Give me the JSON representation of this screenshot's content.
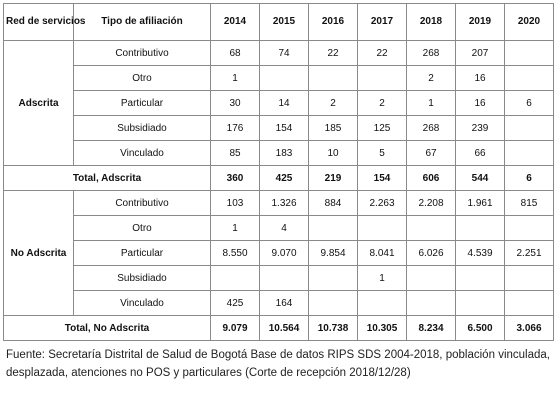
{
  "headers": {
    "red": "Red de servicios",
    "tipo": "Tipo de afiliación",
    "years": [
      "2014",
      "2015",
      "2016",
      "2017",
      "2018",
      "2019",
      "2020"
    ]
  },
  "groups": [
    {
      "label": "Adscrita",
      "rows": [
        {
          "tipo": "Contributivo",
          "values": [
            "68",
            "74",
            "22",
            "22",
            "268",
            "207",
            ""
          ]
        },
        {
          "tipo": "Otro",
          "values": [
            "1",
            "",
            "",
            "",
            "2",
            "16",
            ""
          ]
        },
        {
          "tipo": "Particular",
          "values": [
            "30",
            "14",
            "2",
            "2",
            "1",
            "16",
            "6"
          ]
        },
        {
          "tipo": "Subsidiado",
          "values": [
            "176",
            "154",
            "185",
            "125",
            "268",
            "239",
            ""
          ]
        },
        {
          "tipo": "Vinculado",
          "values": [
            "85",
            "183",
            "10",
            "5",
            "67",
            "66",
            ""
          ]
        }
      ],
      "total": {
        "label": "Total, Adscrita",
        "values": [
          "360",
          "425",
          "219",
          "154",
          "606",
          "544",
          "6"
        ]
      }
    },
    {
      "label": "No Adscrita",
      "rows": [
        {
          "tipo": "Contributivo",
          "values": [
            "103",
            "1.326",
            "884",
            "2.263",
            "2.208",
            "1.961",
            "815"
          ]
        },
        {
          "tipo": "Otro",
          "values": [
            "1",
            "4",
            "",
            "",
            "",
            "",
            ""
          ]
        },
        {
          "tipo": "Particular",
          "values": [
            "8.550",
            "9.070",
            "9.854",
            "8.041",
            "6.026",
            "4.539",
            "2.251"
          ]
        },
        {
          "tipo": "Subsidiado",
          "values": [
            "",
            "",
            "",
            "1",
            "",
            "",
            ""
          ]
        },
        {
          "tipo": "Vinculado",
          "values": [
            "425",
            "164",
            "",
            "",
            "",
            "",
            ""
          ]
        }
      ],
      "total": {
        "label": "Total, No Adscrita",
        "values": [
          "9.079",
          "10.564",
          "10.738",
          "10.305",
          "8.234",
          "6.500",
          "3.066"
        ]
      }
    }
  ],
  "source": "Fuente: Secretaría Distrital de Salud de Bogotá Base de datos RIPS SDS 2004-2018, población vinculada, desplazada, atenciones no POS y particulares (Corte de recepción 2018/12/28)"
}
